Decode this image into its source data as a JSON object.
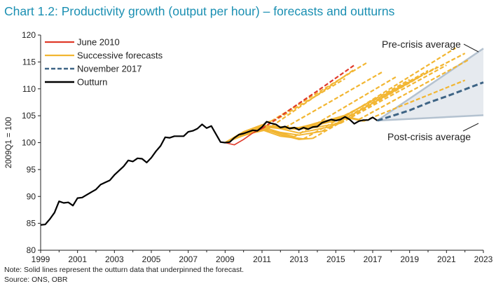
{
  "title": "Chart 1.2: Productivity growth (output per hour) – forecasts and outturns",
  "note": "Note: Solid lines represent the outturn data that underpinned the forecast.",
  "source": "Source: ONS, OBR",
  "colors": {
    "title": "#1a8fb2",
    "june2010": "#e03a2a",
    "successive": "#f2b632",
    "nov2017": "#3e6485",
    "outturn": "#000000",
    "band_fill": "#e6eaef",
    "band_edge": "#b4c2d0"
  },
  "chart_data": {
    "type": "line",
    "title": "Chart 1.2: Productivity growth (output per hour) – forecasts and outturns",
    "ylabel": "2009Q1 = 100",
    "xlabel": "",
    "xlim": [
      1999,
      2023
    ],
    "ylim": [
      80,
      120
    ],
    "xticks": [
      "1999",
      "2001",
      "2003",
      "2005",
      "2007",
      "2009",
      "2011",
      "2013",
      "2015",
      "2017",
      "2019",
      "2021",
      "2023"
    ],
    "yticks": [
      "80",
      "85",
      "90",
      "95",
      "100",
      "105",
      "110",
      "115",
      "120"
    ],
    "legend_position": "top-left",
    "legend": [
      "June 2010",
      "Successive forecasts",
      "November 2017",
      "Outturn"
    ],
    "annotations": [
      "Pre-crisis average",
      "Post-crisis average"
    ],
    "series": [
      {
        "name": "Outturn",
        "style": "solid",
        "x": [
          1999.0,
          1999.25,
          1999.5,
          1999.75,
          2000.0,
          2000.25,
          2000.5,
          2000.75,
          2001.0,
          2001.25,
          2001.5,
          2001.75,
          2002.0,
          2002.25,
          2002.5,
          2002.75,
          2003.0,
          2003.25,
          2003.5,
          2003.75,
          2004.0,
          2004.25,
          2004.5,
          2004.75,
          2005.0,
          2005.25,
          2005.5,
          2005.75,
          2006.0,
          2006.25,
          2006.5,
          2006.75,
          2007.0,
          2007.25,
          2007.5,
          2007.75,
          2008.0,
          2008.25,
          2008.5,
          2008.75,
          2009.0,
          2009.25,
          2009.5,
          2009.75,
          2010.0,
          2010.25,
          2010.5,
          2010.75,
          2011.0,
          2011.25,
          2011.5,
          2011.75,
          2012.0,
          2012.25,
          2012.5,
          2012.75,
          2013.0,
          2013.25,
          2013.5,
          2013.75,
          2014.0,
          2014.25,
          2014.5,
          2014.75,
          2015.0,
          2015.25,
          2015.5,
          2015.75,
          2016.0,
          2016.25,
          2016.5,
          2016.75,
          2017.0,
          2017.25
        ],
        "values": [
          84.7,
          84.8,
          85.8,
          87.0,
          89.1,
          88.8,
          88.9,
          88.3,
          89.7,
          89.8,
          90.3,
          90.8,
          91.3,
          92.2,
          92.6,
          93.0,
          94.0,
          94.8,
          95.6,
          96.7,
          96.5,
          97.1,
          97.0,
          96.3,
          97.2,
          98.4,
          99.4,
          101.0,
          100.9,
          101.2,
          101.2,
          101.2,
          102.0,
          102.2,
          102.6,
          103.4,
          102.7,
          103.1,
          101.6,
          100.1,
          100.0,
          100.1,
          100.9,
          101.5,
          101.7,
          102.0,
          102.3,
          102.2,
          102.9,
          103.9,
          103.6,
          103.4,
          102.8,
          103.0,
          102.6,
          102.8,
          102.4,
          102.8,
          102.5,
          102.9,
          103.0,
          103.7,
          104.0,
          104.3,
          104.1,
          104.3,
          104.8,
          104.3,
          103.5,
          104.0,
          104.2,
          104.2,
          104.7,
          104.1
        ]
      },
      {
        "name": "June 2010",
        "style": "dashed",
        "x": [
          2009.0,
          2009.5,
          2010.0,
          2010.5,
          2011.0,
          2012.0,
          2013.0,
          2014.0,
          2015.0,
          2016.0
        ],
        "values": [
          100.0,
          99.6,
          100.6,
          101.8,
          102.6,
          104.9,
          107.3,
          109.6,
          112.0,
          114.4
        ]
      },
      {
        "name": "Successive forecasts",
        "style": "solid+dashed",
        "forecasts": [
          {
            "x": [
              2009.0,
              2009.75,
              2010.5,
              2011.0,
              2015.5
            ],
            "values": [
              100.0,
              101.0,
              102.0,
              102.7,
              111.9
            ]
          },
          {
            "x": [
              2009.0,
              2009.75,
              2010.5,
              2011.25,
              2016.0
            ],
            "values": [
              100.0,
              101.1,
              101.8,
              102.4,
              113.6
            ]
          },
          {
            "x": [
              2009.0,
              2009.75,
              2010.5,
              2011.25,
              2011.5,
              2016.75
            ],
            "values": [
              100.0,
              101.2,
              102.0,
              103.8,
              104.0,
              115.0
            ]
          },
          {
            "x": [
              2009.0,
              2010.0,
              2011.0,
              2011.75,
              2012.25,
              2017.5
            ],
            "values": [
              100.0,
              101.5,
              102.6,
              103.1,
              102.8,
              113.1
            ]
          },
          {
            "x": [
              2009.0,
              2010.0,
              2011.0,
              2011.75,
              2012.75,
              2018.25
            ],
            "values": [
              100.0,
              101.6,
              102.4,
              102.0,
              101.1,
              112.2
            ]
          },
          {
            "x": [
              2009.0,
              2010.0,
              2011.0,
              2012.0,
              2013.25,
              2019.0
            ],
            "values": [
              100.0,
              101.8,
              102.4,
              101.2,
              100.7,
              111.7
            ]
          },
          {
            "x": [
              2009.0,
              2010.0,
              2011.0,
              2012.0,
              2013.0,
              2013.75,
              2019.5
            ],
            "values": [
              100.0,
              101.7,
              102.7,
              101.5,
              100.6,
              100.8,
              112.1
            ]
          },
          {
            "x": [
              2009.0,
              2010.0,
              2011.0,
              2012.0,
              2013.0,
              2014.25,
              2020.0
            ],
            "values": [
              100.0,
              101.9,
              102.9,
              101.9,
              101.4,
              102.1,
              113.4
            ]
          },
          {
            "x": [
              2009.0,
              2010.0,
              2011.0,
              2012.0,
              2013.0,
              2014.75,
              2020.5
            ],
            "values": [
              100.0,
              101.8,
              103.0,
              102.6,
              101.8,
              103.0,
              114.1
            ]
          },
          {
            "x": [
              2009.0,
              2010.0,
              2011.0,
              2012.0,
              2013.0,
              2014.0,
              2015.25,
              2021.0
            ],
            "values": [
              100.0,
              101.9,
              103.1,
              102.7,
              102.5,
              102.9,
              103.6,
              114.4
            ]
          },
          {
            "x": [
              2009.0,
              2010.0,
              2011.0,
              2012.0,
              2013.0,
              2014.0,
              2015.25,
              2021.5
            ],
            "values": [
              100.0,
              101.9,
              103.2,
              102.9,
              102.6,
              103.3,
              104.3,
              117.6
            ]
          },
          {
            "x": [
              2009.0,
              2010.0,
              2011.0,
              2012.0,
              2013.0,
              2014.0,
              2015.5,
              2022.0
            ],
            "values": [
              100.0,
              102.0,
              103.3,
              102.8,
              102.8,
              103.6,
              105.1,
              116.6
            ]
          },
          {
            "x": [
              2009.0,
              2010.0,
              2011.0,
              2012.0,
              2013.0,
              2014.0,
              2015.5,
              2016.25,
              2022.25
            ],
            "values": [
              100.0,
              102.0,
              103.2,
              102.9,
              102.7,
              103.7,
              104.9,
              104.3,
              115.5
            ]
          },
          {
            "x": [
              2009.0,
              2010.0,
              2011.0,
              2012.0,
              2013.0,
              2014.0,
              2015.5,
              2016.5,
              2022.0
            ],
            "values": [
              100.0,
              102.0,
              103.3,
              102.8,
              102.5,
              103.6,
              104.7,
              104.0,
              111.6
            ]
          }
        ]
      },
      {
        "name": "November 2017",
        "style": "dashed",
        "x": [
          2017.25,
          2018.0,
          2019.0,
          2020.0,
          2021.0,
          2022.0,
          2023.0
        ],
        "values": [
          104.1,
          104.9,
          106.0,
          107.4,
          108.6,
          109.9,
          111.2
        ]
      },
      {
        "name": "Pre-crisis average",
        "style": "band-edge",
        "x": [
          2017.25,
          2023.0
        ],
        "values": [
          104.1,
          117.5
        ]
      },
      {
        "name": "Post-crisis average",
        "style": "band-edge",
        "x": [
          2017.25,
          2023.0
        ],
        "values": [
          104.1,
          105.1
        ]
      }
    ]
  }
}
